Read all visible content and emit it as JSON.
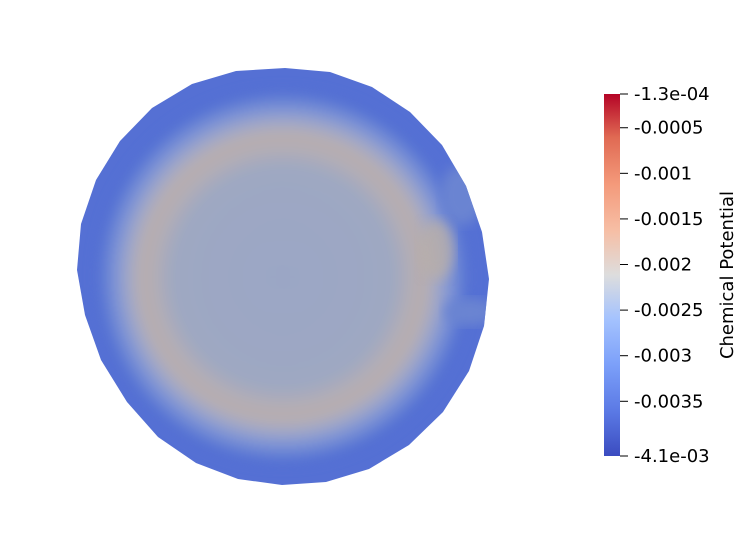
{
  "chart_data": {
    "type": "heatmap",
    "title": "",
    "colorbar": {
      "label": "Chemical Potential",
      "range": [
        -0.0041,
        -0.00013
      ],
      "colormap": "coolwarm",
      "colors": {
        "min": "#3b4cc0",
        "low": "#7093f3",
        "mid": "#dddddd",
        "high": "#f49a7b",
        "max": "#b40426"
      },
      "ticks": [
        {
          "value": -0.00013,
          "label": "-1.3e-04"
        },
        {
          "value": -0.0005,
          "label": "-0.0005"
        },
        {
          "value": -0.001,
          "label": "-0.001"
        },
        {
          "value": -0.0015,
          "label": "-0.0015"
        },
        {
          "value": -0.002,
          "label": "-0.002"
        },
        {
          "value": -0.0025,
          "label": "-0.0025"
        },
        {
          "value": -0.003,
          "label": "-0.003"
        },
        {
          "value": -0.0035,
          "label": "-0.0035"
        },
        {
          "value": -0.0041,
          "label": "-4.1e-03"
        }
      ]
    },
    "field": {
      "shape": "disk",
      "rim_value": -0.0039,
      "ring_value": -0.0024,
      "interior_value": -0.0029
    }
  }
}
